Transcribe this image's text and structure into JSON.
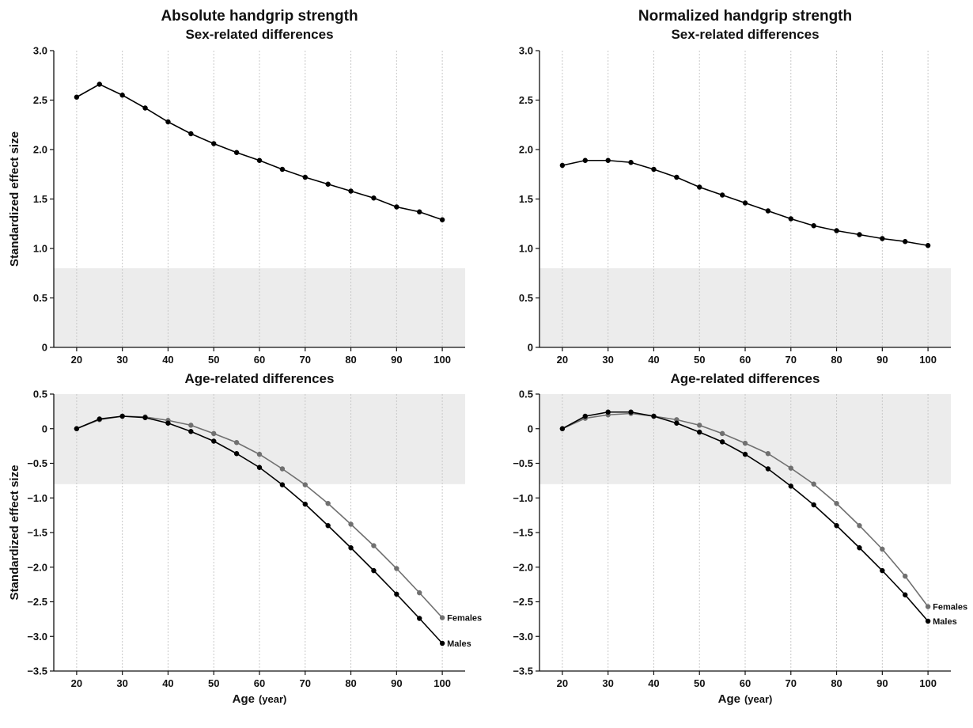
{
  "chart_data": [
    {
      "type": "line",
      "title": "Absolute handgrip strength",
      "subtitle": "Sex-related differences",
      "xlabel": "",
      "ylabel": "Standardized effect size",
      "xlim": [
        15,
        105
      ],
      "ylim": [
        0,
        3.0
      ],
      "xticks": [
        20,
        30,
        40,
        50,
        60,
        70,
        80,
        90,
        100
      ],
      "yticks": [
        0,
        0.5,
        1.0,
        1.5,
        2.0,
        2.5,
        3.0
      ],
      "ytick_labels": [
        "0",
        "0.5",
        "1.0",
        "1.5",
        "2.0",
        "2.5",
        "3.0"
      ],
      "shaded_band": [
        0,
        0.8
      ],
      "grid": "vertical dotted",
      "x": [
        20,
        25,
        30,
        35,
        40,
        45,
        50,
        55,
        60,
        65,
        70,
        75,
        80,
        85,
        90,
        95,
        100
      ],
      "series": [
        {
          "color": "#000000",
          "values": [
            2.53,
            2.66,
            2.55,
            2.42,
            2.28,
            2.16,
            2.06,
            1.97,
            1.89,
            1.8,
            1.72,
            1.65,
            1.58,
            1.51,
            1.42,
            1.37,
            1.29
          ]
        }
      ]
    },
    {
      "type": "line",
      "title": "Normalized handgrip strength",
      "subtitle": "Sex-related differences",
      "xlabel": "",
      "ylabel": "",
      "xlim": [
        15,
        105
      ],
      "ylim": [
        0,
        3.0
      ],
      "xticks": [
        20,
        30,
        40,
        50,
        60,
        70,
        80,
        90,
        100
      ],
      "yticks": [
        0,
        0.5,
        1.0,
        1.5,
        2.0,
        2.5,
        3.0
      ],
      "ytick_labels": [
        "0",
        "0.5",
        "1.0",
        "1.5",
        "2.0",
        "2.5",
        "3.0"
      ],
      "shaded_band": [
        0,
        0.8
      ],
      "grid": "vertical dotted",
      "x": [
        20,
        25,
        30,
        35,
        40,
        45,
        50,
        55,
        60,
        65,
        70,
        75,
        80,
        85,
        90,
        95,
        100
      ],
      "series": [
        {
          "color": "#000000",
          "values": [
            1.84,
            1.89,
            1.89,
            1.87,
            1.8,
            1.72,
            1.62,
            1.54,
            1.46,
            1.38,
            1.3,
            1.23,
            1.18,
            1.14,
            1.1,
            1.07,
            1.03
          ]
        }
      ]
    },
    {
      "type": "line",
      "title": "",
      "subtitle": "Age-related differences",
      "xlabel": "Age",
      "xlabel_unit": "(year)",
      "ylabel": "Standardized effect size",
      "xlim": [
        15,
        105
      ],
      "ylim": [
        -3.5,
        0.5
      ],
      "xticks": [
        20,
        30,
        40,
        50,
        60,
        70,
        80,
        90,
        100
      ],
      "yticks": [
        0.5,
        0,
        -0.5,
        -1.0,
        -1.5,
        -2.0,
        -2.5,
        -3.0,
        -3.5
      ],
      "ytick_labels": [
        "0.5",
        "0",
        "−0.5",
        "−1.0",
        "−1.5",
        "−2.0",
        "−2.5",
        "−3.0",
        "−3.5"
      ],
      "shaded_band": [
        -0.8,
        0.5
      ],
      "grid": "vertical dotted",
      "x": [
        20,
        25,
        30,
        35,
        40,
        45,
        50,
        55,
        60,
        65,
        70,
        75,
        80,
        85,
        90,
        95,
        100
      ],
      "series": [
        {
          "name": "Males",
          "color": "#000000",
          "values": [
            0.0,
            0.14,
            0.18,
            0.16,
            0.08,
            -0.04,
            -0.18,
            -0.36,
            -0.56,
            -0.81,
            -1.09,
            -1.4,
            -1.72,
            -2.05,
            -2.39,
            -2.74,
            -3.1
          ]
        },
        {
          "name": "Females",
          "color": "#707070",
          "values": [
            0.0,
            0.13,
            0.18,
            0.17,
            0.12,
            0.05,
            -0.07,
            -0.2,
            -0.37,
            -0.58,
            -0.81,
            -1.08,
            -1.38,
            -1.69,
            -2.02,
            -2.37,
            -2.73
          ]
        }
      ]
    },
    {
      "type": "line",
      "title": "",
      "subtitle": "Age-related differences",
      "xlabel": "Age",
      "xlabel_unit": "(year)",
      "ylabel": "",
      "xlim": [
        15,
        105
      ],
      "ylim": [
        -3.5,
        0.5
      ],
      "xticks": [
        20,
        30,
        40,
        50,
        60,
        70,
        80,
        90,
        100
      ],
      "yticks": [
        0.5,
        0,
        -0.5,
        -1.0,
        -1.5,
        -2.0,
        -2.5,
        -3.0,
        -3.5
      ],
      "ytick_labels": [
        "0.5",
        "0",
        "−0.5",
        "−1.0",
        "−1.5",
        "−2.0",
        "−2.5",
        "−3.0",
        "−3.5"
      ],
      "shaded_band": [
        -0.8,
        0.5
      ],
      "grid": "vertical dotted",
      "x": [
        20,
        25,
        30,
        35,
        40,
        45,
        50,
        55,
        60,
        65,
        70,
        75,
        80,
        85,
        90,
        95,
        100
      ],
      "series": [
        {
          "name": "Males",
          "color": "#000000",
          "values": [
            0.0,
            0.18,
            0.24,
            0.24,
            0.18,
            0.08,
            -0.05,
            -0.19,
            -0.37,
            -0.58,
            -0.83,
            -1.1,
            -1.4,
            -1.72,
            -2.05,
            -2.4,
            -2.78
          ]
        },
        {
          "name": "Females",
          "color": "#707070",
          "values": [
            0.0,
            0.15,
            0.2,
            0.22,
            0.18,
            0.13,
            0.05,
            -0.07,
            -0.21,
            -0.36,
            -0.57,
            -0.8,
            -1.08,
            -1.4,
            -1.74,
            -2.13,
            -2.57
          ]
        }
      ]
    }
  ]
}
